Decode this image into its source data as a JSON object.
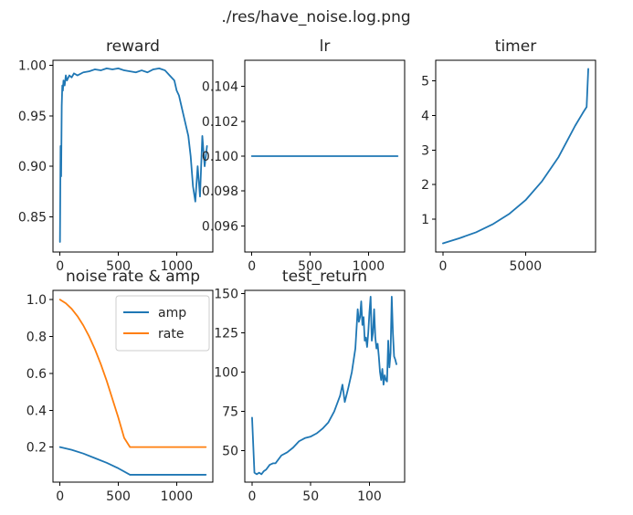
{
  "figure": {
    "suptitle": "./res/have_noise.log.png"
  },
  "colors": {
    "blue": "#1f77b4",
    "orange": "#ff7f0e"
  },
  "chart_data": [
    {
      "id": "reward",
      "type": "line",
      "title": "reward",
      "xlim": [
        -60,
        1310
      ],
      "ylim": [
        0.815,
        1.005
      ],
      "xticks": [
        0,
        500,
        1000
      ],
      "xticklabels": [
        "0",
        "500",
        "1000"
      ],
      "yticks": [
        0.85,
        0.9,
        0.95,
        1.0
      ],
      "yticklabels": [
        "0.85",
        "0.90",
        "0.95",
        "1.00"
      ],
      "series": [
        {
          "color": "#1f77b4",
          "x": [
            0,
            5,
            10,
            15,
            20,
            25,
            30,
            40,
            50,
            60,
            80,
            100,
            120,
            150,
            200,
            250,
            300,
            350,
            400,
            450,
            500,
            550,
            600,
            650,
            700,
            750,
            800,
            850,
            900,
            940,
            980,
            1000,
            1020,
            1040,
            1060,
            1080,
            1100,
            1120,
            1140,
            1160,
            1180,
            1200,
            1220,
            1240,
            1260
          ],
          "y": [
            0.825,
            0.92,
            0.89,
            0.96,
            0.98,
            0.975,
            0.985,
            0.98,
            0.99,
            0.985,
            0.99,
            0.988,
            0.992,
            0.99,
            0.993,
            0.994,
            0.996,
            0.995,
            0.997,
            0.996,
            0.997,
            0.995,
            0.994,
            0.993,
            0.995,
            0.993,
            0.996,
            0.997,
            0.995,
            0.99,
            0.985,
            0.975,
            0.97,
            0.96,
            0.95,
            0.94,
            0.93,
            0.91,
            0.88,
            0.865,
            0.9,
            0.87,
            0.93,
            0.9,
            0.92
          ]
        }
      ]
    },
    {
      "id": "lr",
      "type": "line",
      "title": "lr",
      "xlim": [
        -60,
        1310
      ],
      "ylim": [
        0.0945,
        0.1055
      ],
      "xticks": [
        0,
        500,
        1000
      ],
      "xticklabels": [
        "0",
        "500",
        "1000"
      ],
      "yticks": [
        0.096,
        0.098,
        0.1,
        0.102,
        0.104
      ],
      "yticklabels": [
        "0.096",
        "0.098",
        "0.100",
        "0.102",
        "0.104"
      ],
      "series": [
        {
          "color": "#1f77b4",
          "x": [
            0,
            1250
          ],
          "y": [
            0.1,
            0.1
          ]
        }
      ]
    },
    {
      "id": "timer",
      "type": "line",
      "title": "timer",
      "xlim": [
        -440,
        9240
      ],
      "ylim": [
        0.05,
        5.6
      ],
      "xticks": [
        0,
        5000
      ],
      "xticklabels": [
        "0",
        "5000"
      ],
      "yticks": [
        1,
        2,
        3,
        4,
        5
      ],
      "yticklabels": [
        "1",
        "2",
        "3",
        "4",
        "5"
      ],
      "series": [
        {
          "color": "#1f77b4",
          "x": [
            0,
            1000,
            2000,
            3000,
            4000,
            5000,
            6000,
            7000,
            7500,
            8000,
            8500,
            8700,
            8750,
            8800
          ],
          "y": [
            0.3,
            0.45,
            0.62,
            0.85,
            1.15,
            1.55,
            2.1,
            2.8,
            3.25,
            3.7,
            4.1,
            4.25,
            4.8,
            5.35
          ]
        }
      ]
    },
    {
      "id": "noise",
      "type": "line",
      "title": "noise rate & amp",
      "xlim": [
        -60,
        1310
      ],
      "ylim": [
        0.01,
        1.05
      ],
      "xticks": [
        0,
        500,
        1000
      ],
      "xticklabels": [
        "0",
        "500",
        "1000"
      ],
      "yticks": [
        0.2,
        0.4,
        0.6,
        0.8,
        1.0
      ],
      "yticklabels": [
        "0.2",
        "0.4",
        "0.6",
        "0.8",
        "1.0"
      ],
      "legend": {
        "placement": "upper right",
        "entries": [
          "amp",
          "rate"
        ]
      },
      "series": [
        {
          "name": "amp",
          "color": "#1f77b4",
          "x": [
            0,
            100,
            200,
            300,
            400,
            500,
            600,
            700,
            800,
            900,
            1000,
            1100,
            1250
          ],
          "y": [
            0.2,
            0.185,
            0.165,
            0.14,
            0.115,
            0.085,
            0.05,
            0.05,
            0.05,
            0.05,
            0.05,
            0.05,
            0.05
          ]
        },
        {
          "name": "rate",
          "color": "#ff7f0e",
          "x": [
            0,
            50,
            100,
            150,
            200,
            250,
            300,
            350,
            400,
            450,
            500,
            550,
            600,
            700,
            800,
            900,
            1000,
            1100,
            1250
          ],
          "y": [
            1.0,
            0.98,
            0.95,
            0.91,
            0.86,
            0.8,
            0.73,
            0.65,
            0.56,
            0.46,
            0.36,
            0.25,
            0.2,
            0.2,
            0.2,
            0.2,
            0.2,
            0.2,
            0.2
          ]
        }
      ]
    },
    {
      "id": "test_return",
      "type": "line",
      "title": "test_return",
      "xlim": [
        -6.2,
        130
      ],
      "ylim": [
        30,
        152
      ],
      "xticks": [
        0,
        50,
        100
      ],
      "xticklabels": [
        "0",
        "50",
        "100"
      ],
      "yticks": [
        50,
        75,
        100,
        125,
        150
      ],
      "yticklabels": [
        "50",
        "75",
        "100",
        "125",
        "150"
      ],
      "series": [
        {
          "color": "#1f77b4",
          "x": [
            0,
            2,
            4,
            6,
            8,
            10,
            12,
            15,
            18,
            20,
            25,
            30,
            35,
            40,
            45,
            50,
            55,
            60,
            65,
            70,
            75,
            77,
            79,
            80,
            82,
            85,
            88,
            90,
            91,
            92,
            93,
            94,
            95,
            96,
            97,
            98,
            99,
            100,
            101,
            102,
            103,
            104,
            105,
            106,
            107,
            108,
            109,
            110,
            111,
            112,
            113,
            114,
            115,
            116,
            117,
            118,
            119,
            120,
            121,
            122,
            123
          ],
          "y": [
            71,
            36,
            35,
            36,
            35,
            37,
            38,
            41,
            42,
            42,
            47,
            49,
            52,
            56,
            58,
            59,
            61,
            64,
            68,
            75,
            85,
            92,
            81,
            84,
            90,
            100,
            115,
            140,
            132,
            135,
            145,
            130,
            135,
            120,
            122,
            116,
            125,
            138,
            148,
            120,
            125,
            140,
            122,
            115,
            118,
            110,
            100,
            95,
            102,
            92,
            98,
            95,
            94,
            120,
            103,
            112,
            148,
            125,
            110,
            108,
            105
          ]
        }
      ]
    }
  ]
}
